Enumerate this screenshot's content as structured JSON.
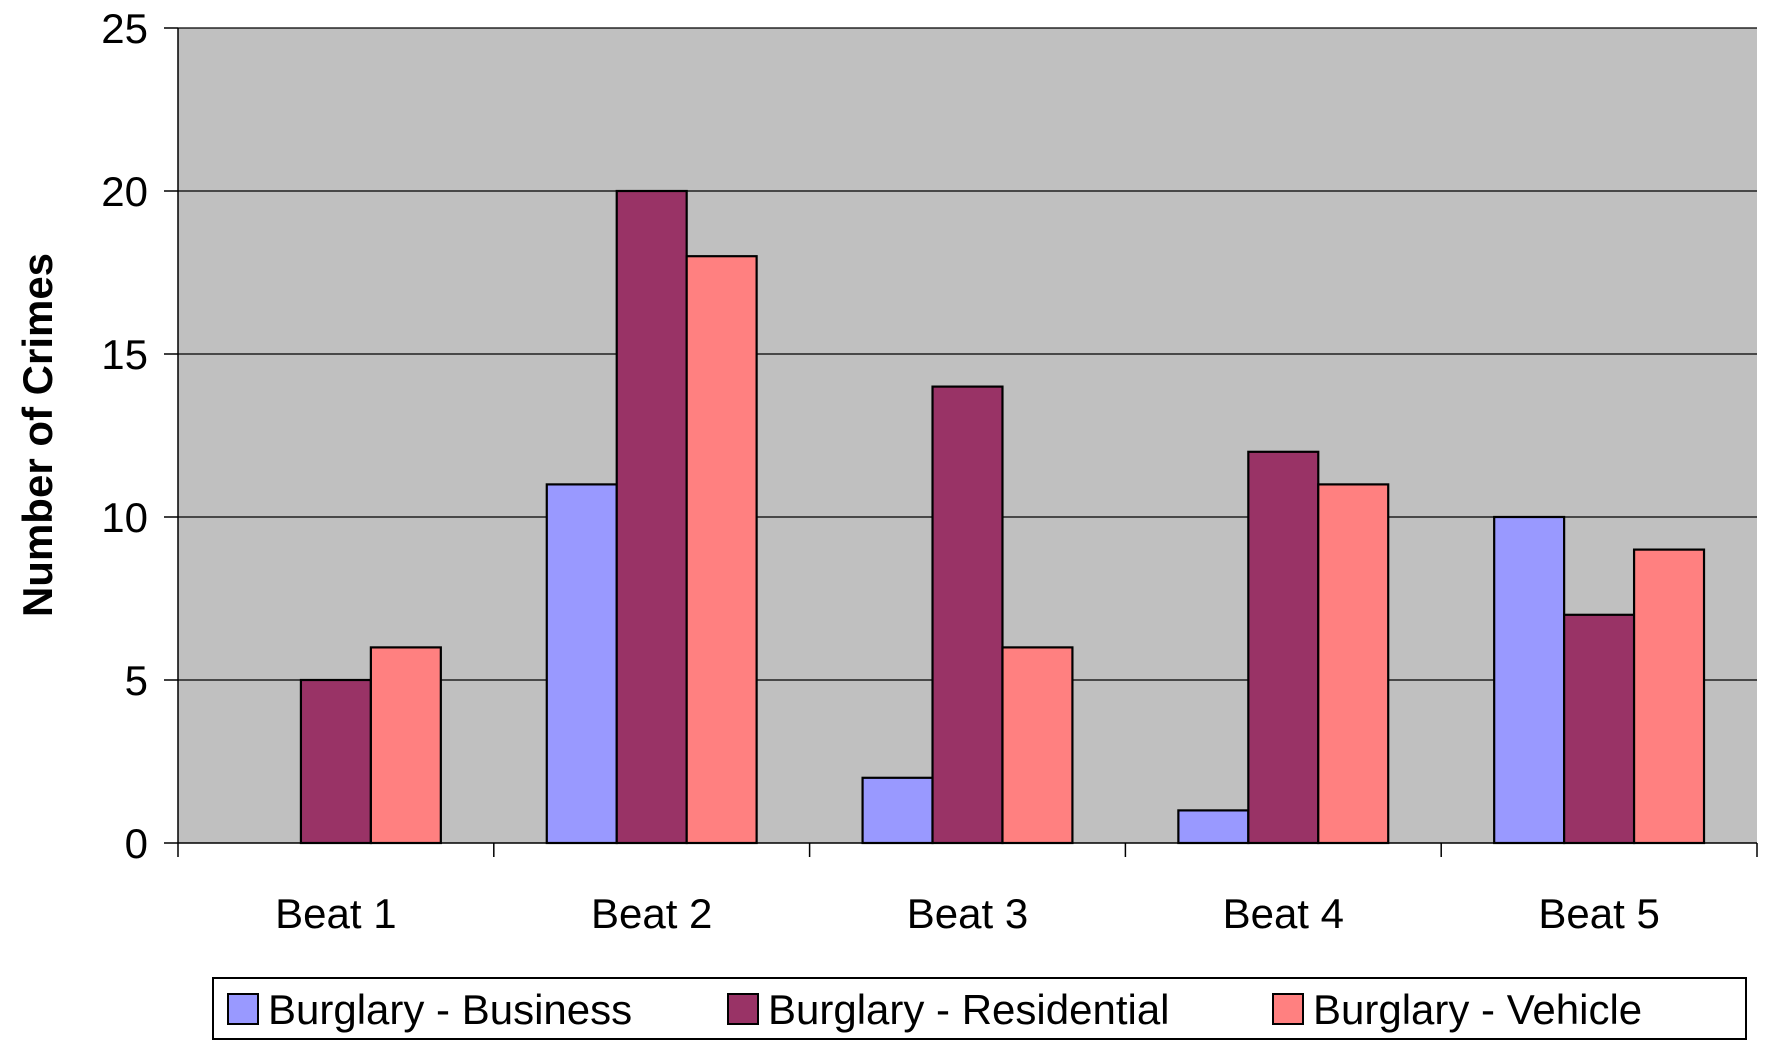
{
  "chart_data": {
    "type": "bar",
    "title": "",
    "xlabel": "",
    "ylabel": "Number of Crimes",
    "ylim": [
      0,
      25
    ],
    "yticks": [
      0,
      5,
      10,
      15,
      20,
      25
    ],
    "grid": true,
    "legend_position": "bottom",
    "categories": [
      "Beat 1",
      "Beat 2",
      "Beat 3",
      "Beat 4",
      "Beat 5"
    ],
    "series": [
      {
        "name": "Burglary - Business",
        "color": "#9999FF",
        "values": [
          0,
          11,
          2,
          1,
          10
        ]
      },
      {
        "name": "Burglary - Residential",
        "color": "#993366",
        "values": [
          5,
          20,
          14,
          12,
          7
        ]
      },
      {
        "name": "Burglary - Vehicle",
        "color": "#FF8080",
        "values": [
          6,
          18,
          6,
          11,
          9
        ]
      }
    ],
    "plot_background": "#C0C0C0"
  }
}
